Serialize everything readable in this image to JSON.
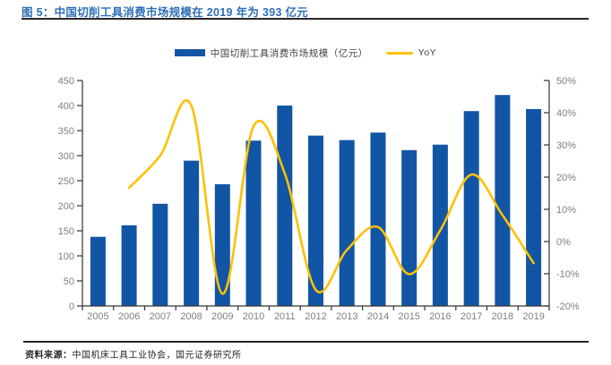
{
  "title": "图 5：中国切削工具消费市场规模在 2019 年为 393 亿元",
  "legend": {
    "bar_label": "中国切削工具消费市场规模（亿元）",
    "line_label": "YoY"
  },
  "source": {
    "label": "资料来源：",
    "text": "中国机床工具工业协会，国元证券研究所"
  },
  "colors": {
    "bar": "#1155A4",
    "line": "#FFC000",
    "title_text": "#2E6FB7",
    "rule": "#262626",
    "axis_line": "#333333",
    "tick_text": "#7F7F7F",
    "legend_text": "#3F3F3F",
    "source_text": "#262626"
  },
  "chart_data": {
    "type": "bar",
    "title": "图 5：中国切削工具消费市场规模在 2019 年为 393 亿元",
    "categories": [
      "2005",
      "2006",
      "2007",
      "2008",
      "2009",
      "2010",
      "2011",
      "2012",
      "2013",
      "2014",
      "2015",
      "2016",
      "2017",
      "2018",
      "2019"
    ],
    "series": [
      {
        "name": "中国切削工具消费市场规模（亿元）",
        "type": "bar",
        "axis": "left",
        "values": [
          138,
          161,
          204,
          290,
          243,
          330,
          400,
          340,
          331,
          346,
          311,
          322,
          389,
          421,
          393
        ]
      },
      {
        "name": "YoY",
        "type": "line",
        "axis": "right",
        "values": [
          null,
          16.7,
          26.7,
          42.2,
          -16.2,
          35.8,
          21.2,
          -15.0,
          -2.6,
          4.5,
          -10.1,
          3.5,
          20.8,
          8.2,
          -6.7
        ]
      }
    ],
    "left_axis": {
      "min": 0,
      "max": 450,
      "step": 50,
      "tick_labels": [
        "0",
        "50",
        "100",
        "150",
        "200",
        "250",
        "300",
        "350",
        "400",
        "450"
      ]
    },
    "right_axis": {
      "min": -20,
      "max": 50,
      "step": 10,
      "tick_labels": [
        "-20%",
        "-10%",
        "0%",
        "10%",
        "20%",
        "30%",
        "40%",
        "50%"
      ]
    },
    "grid": false,
    "legend_position": "top-center"
  }
}
